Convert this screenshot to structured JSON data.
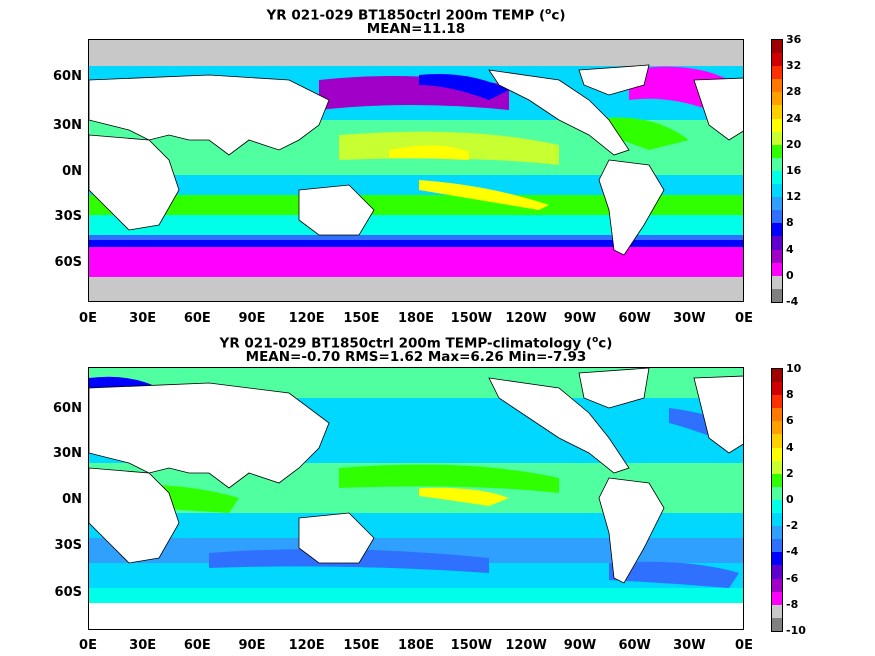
{
  "panels": [
    {
      "title_line1": "YR 021-029 BT1850ctrl 200m TEMP (",
      "title_sup": "o",
      "title_unit": "c)",
      "stats": "MEAN=11.18",
      "colorbar": {
        "ticks": [
          "36",
          "32",
          "28",
          "24",
          "20",
          "16",
          "12",
          "8",
          "4",
          "0",
          "-4"
        ],
        "colors": [
          "#a00000",
          "#d00000",
          "#ff3000",
          "#ff7800",
          "#ffa000",
          "#ffd000",
          "#ffff00",
          "#c8ff30",
          "#30ff00",
          "#50ffa0",
          "#00ffe8",
          "#00d8ff",
          "#30a0ff",
          "#3070ff",
          "#0000ff",
          "#6000d0",
          "#a000c8",
          "#ff00ff",
          "#c8c8c8",
          "#808080"
        ]
      }
    },
    {
      "title_line1": "YR 021-029 BT1850ctrl 200m TEMP-climatology (",
      "title_sup": "o",
      "title_unit": "c)",
      "stats": "MEAN=-0.70   RMS=1.62   Max=6.26   Min=-7.93",
      "colorbar": {
        "ticks": [
          "10",
          "8",
          "6",
          "4",
          "2",
          "0",
          "-2",
          "-4",
          "-6",
          "-8",
          "-10"
        ],
        "colors": [
          "#a00000",
          "#d00000",
          "#ff3000",
          "#ff7800",
          "#ffa000",
          "#ffd000",
          "#ffff00",
          "#c8ff30",
          "#30ff00",
          "#50ffa0",
          "#00ffe8",
          "#00d8ff",
          "#30a0ff",
          "#3070ff",
          "#0000ff",
          "#6000d0",
          "#a000c8",
          "#ff00ff",
          "#c8c8c8",
          "#808080"
        ]
      }
    }
  ],
  "lat_labels": [
    "60N",
    "30N",
    "0N",
    "30S",
    "60S"
  ],
  "lon_labels": [
    "0E",
    "30E",
    "60E",
    "90E",
    "120E",
    "150E",
    "180E",
    "150W",
    "120W",
    "90W",
    "60W",
    "30W",
    "0E"
  ]
}
